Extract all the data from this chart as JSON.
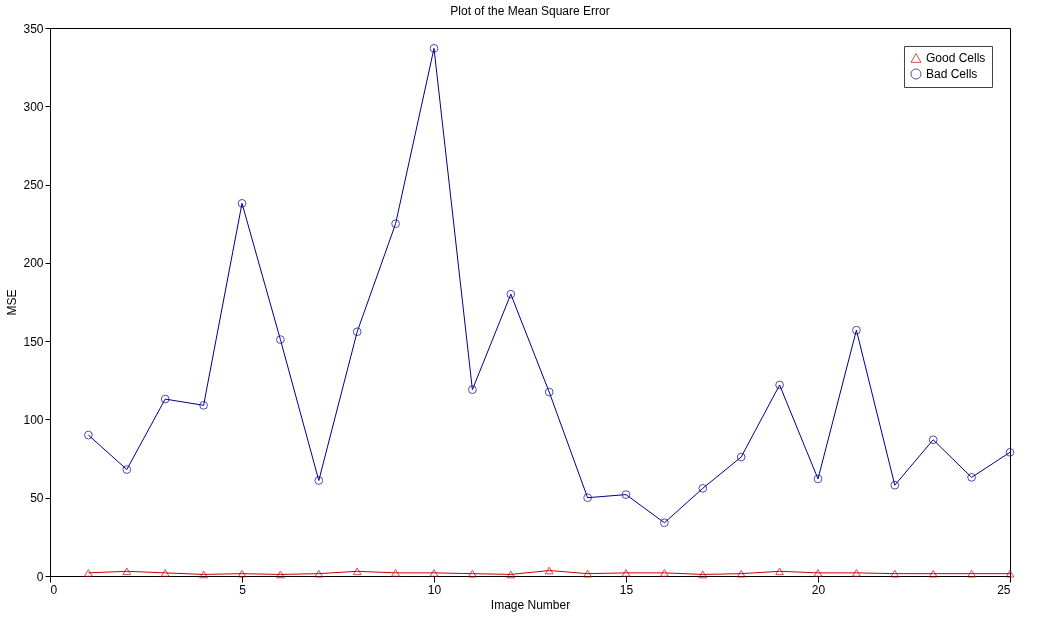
{
  "chart_data": {
    "type": "line",
    "title": "Plot of the Mean Square Error",
    "xlabel": "Image Number",
    "ylabel": "MSE",
    "x": [
      1,
      2,
      3,
      4,
      5,
      6,
      7,
      8,
      9,
      10,
      11,
      12,
      13,
      14,
      15,
      16,
      17,
      18,
      19,
      20,
      21,
      22,
      23,
      24,
      25
    ],
    "series": [
      {
        "name": "Good Cells",
        "color": "#cc0000",
        "marker": "triangle",
        "values": [
          2,
          3,
          2,
          1,
          1.5,
          1,
          1.5,
          3,
          2,
          2,
          1.5,
          1,
          3.5,
          1.5,
          2,
          2,
          1,
          1.5,
          3,
          2,
          2,
          1.5,
          1.5,
          1.5,
          1.5
        ]
      },
      {
        "name": "Bad Cells",
        "color": "#00008b",
        "marker": "circle",
        "values": [
          90,
          68,
          113,
          109,
          238,
          151,
          61,
          156,
          225,
          337,
          119,
          180,
          117.5,
          50,
          52,
          34,
          56,
          76,
          122,
          62,
          157,
          58,
          87,
          63,
          79
        ]
      }
    ],
    "xlim": [
      0,
      25
    ],
    "xticks": [
      0,
      5,
      10,
      15,
      20,
      25
    ],
    "ylim": [
      0,
      350
    ],
    "yticks": [
      0,
      50,
      100,
      150,
      200,
      250,
      300,
      350
    ],
    "grid": false,
    "legend": "top right",
    "line_style": "solid"
  }
}
